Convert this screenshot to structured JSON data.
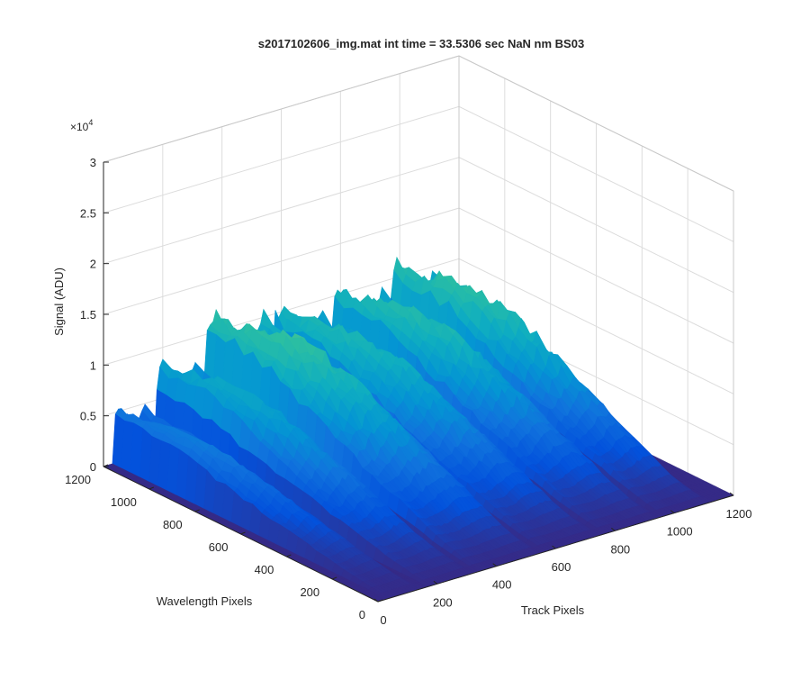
{
  "chart_data": {
    "type": "surface",
    "title": "s2017102606_img.mat int time = 33.5306 sec  NaN nm BS03",
    "xlabel": "Track Pixels",
    "ylabel": "Wavelength Pixels",
    "zlabel": "Signal (ADU)",
    "z_exponent_label": "×10",
    "z_exponent": "4",
    "xlim": [
      0,
      1200
    ],
    "ylim": [
      0,
      1200
    ],
    "zlim": [
      0,
      3
    ],
    "z_scale": 10000,
    "grid": true,
    "colormap": "parula",
    "x_ticks": [
      "0",
      "200",
      "400",
      "600",
      "800",
      "1000",
      "1200"
    ],
    "y_ticks": [
      "0",
      "200",
      "400",
      "600",
      "800",
      "1000",
      "1200"
    ],
    "z_ticks": [
      "0",
      "0.5",
      "1",
      "1.5",
      "2",
      "2.5",
      "3"
    ],
    "track_bands": [
      {
        "x_start": 30,
        "x_end": 150,
        "peak_signal": 0.95
      },
      {
        "x_start": 170,
        "x_end": 330,
        "peak_signal": 1.55
      },
      {
        "x_start": 330,
        "x_end": 560,
        "peak_signal": 2.1
      },
      {
        "x_start": 560,
        "x_end": 760,
        "peak_signal": 1.85
      },
      {
        "x_start": 760,
        "x_end": 960,
        "peak_signal": 1.95
      },
      {
        "x_start": 960,
        "x_end": 1130,
        "peak_signal": 2.05
      }
    ],
    "wavelength_range_with_signal": [
      0,
      1200
    ]
  }
}
